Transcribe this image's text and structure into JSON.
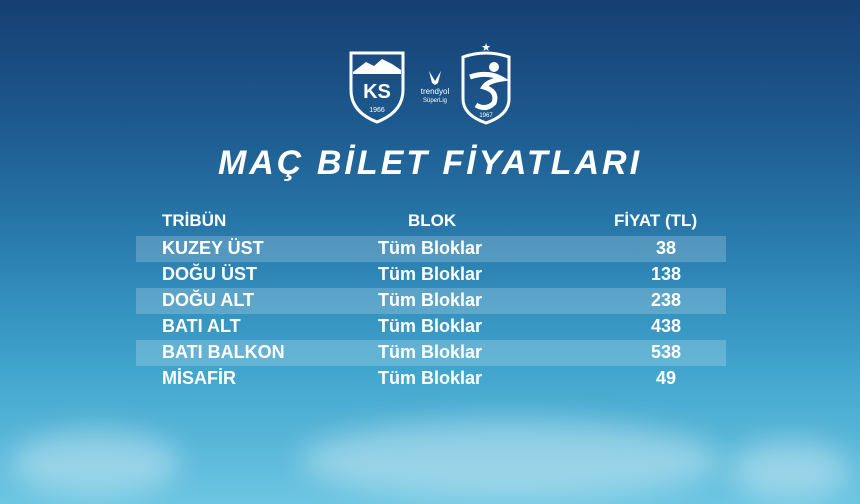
{
  "logos": {
    "home": {
      "letters": "KS",
      "year": "1966"
    },
    "league": {
      "line1": "trendyol",
      "line2": "SüperLig"
    },
    "away": {
      "year": "1967"
    }
  },
  "title": "MAÇ BİLET FİYATLARI",
  "table": {
    "headers": [
      "TRİBÜN",
      "BLOK",
      "FİYAT (TL)"
    ],
    "rows": [
      {
        "tribun": "KUZEY ÜST",
        "blok": "Tüm Bloklar",
        "fiyat": "38"
      },
      {
        "tribun": "DOĞU ÜST",
        "blok": "Tüm Bloklar",
        "fiyat": "138"
      },
      {
        "tribun": "DOĞU ALT",
        "blok": "Tüm Bloklar",
        "fiyat": "238"
      },
      {
        "tribun": "BATI ALT",
        "blok": "Tüm Bloklar",
        "fiyat": "438"
      },
      {
        "tribun": "BATI BALKON",
        "blok": "Tüm Bloklar",
        "fiyat": "538"
      },
      {
        "tribun": "MİSAFİR",
        "blok": "Tüm Bloklar",
        "fiyat": "49"
      }
    ]
  }
}
